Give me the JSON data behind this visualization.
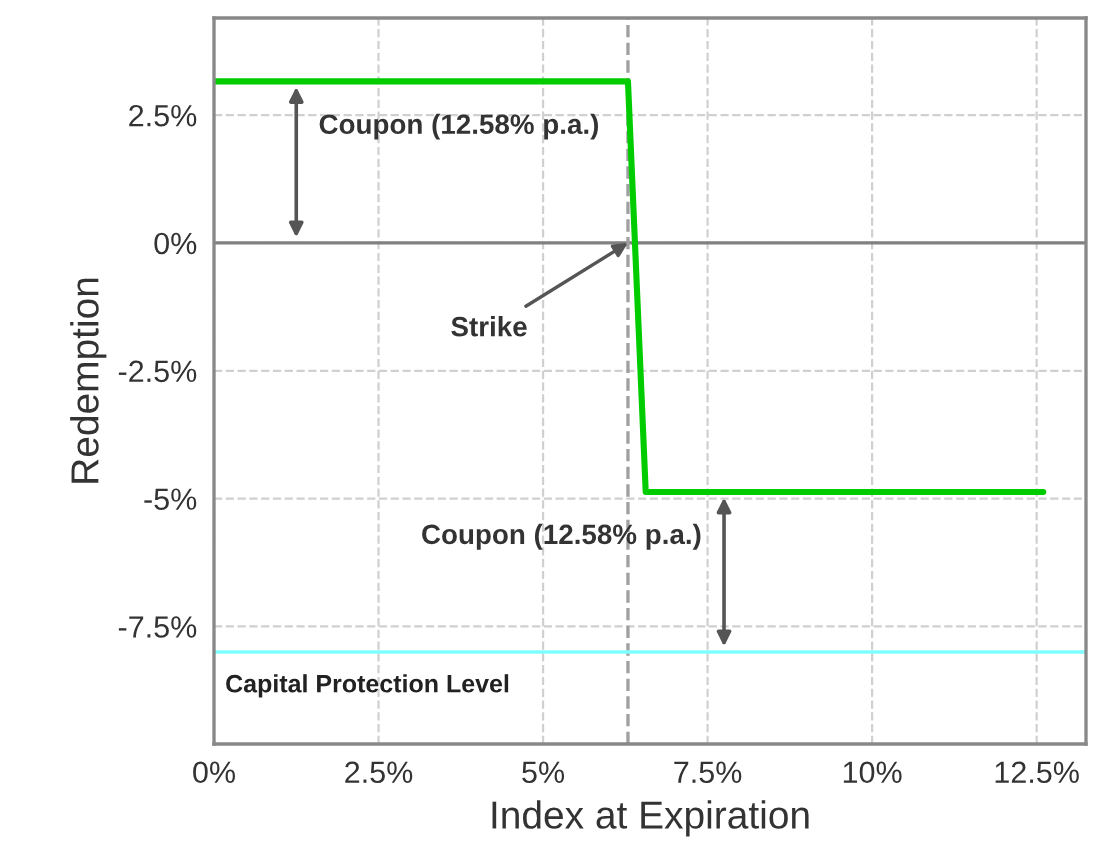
{
  "chart_data": {
    "type": "line",
    "xlabel": "Index at Expiration",
    "ylabel": "Redemption",
    "x": [
      0,
      6.29,
      6.56,
      12.6
    ],
    "series": [
      {
        "color": "#00cc00",
        "values": [
          3.16,
          3.16,
          -4.87,
          -4.87
        ]
      }
    ],
    "xlim": [
      0,
      13.25
    ],
    "ylim": [
      -9.8,
      4.4
    ],
    "xticks": [
      {
        "value": 0,
        "label": "0%"
      },
      {
        "value": 2.5,
        "label": "2.5%"
      },
      {
        "value": 5,
        "label": "5%"
      },
      {
        "value": 7.5,
        "label": "7.5%"
      },
      {
        "value": 10,
        "label": "10%"
      },
      {
        "value": 12.5,
        "label": "12.5%"
      }
    ],
    "yticks": [
      {
        "value": -7.5,
        "label": "-7.5%"
      },
      {
        "value": -5,
        "label": "-5%"
      },
      {
        "value": -2.5,
        "label": "-2.5%"
      },
      {
        "value": 0,
        "label": "0%"
      },
      {
        "value": 2.5,
        "label": "2.5%"
      }
    ],
    "ref_lines": [
      {
        "axis": "y",
        "value": 0,
        "label": null,
        "color": "#808080",
        "line_style": "solid"
      },
      {
        "axis": "x",
        "value": 6.29,
        "label": null,
        "color": "#a0a0a0",
        "line_style": "dashed"
      },
      {
        "axis": "y",
        "value": -8,
        "label": "Capital Protection Level",
        "color": "#80ffff",
        "line_style": "solid"
      }
    ],
    "annotations": [
      {
        "text": "Coupon (12.58% p.a.)",
        "x": 1.25,
        "y": 3.16
      },
      {
        "text": "Strike",
        "x": 6.29,
        "y": 0
      },
      {
        "text": "Coupon (12.58% p.a.)",
        "x": 7.75,
        "y": -4.87
      }
    ],
    "grid": true,
    "marker": "none",
    "line_style": "solid"
  }
}
